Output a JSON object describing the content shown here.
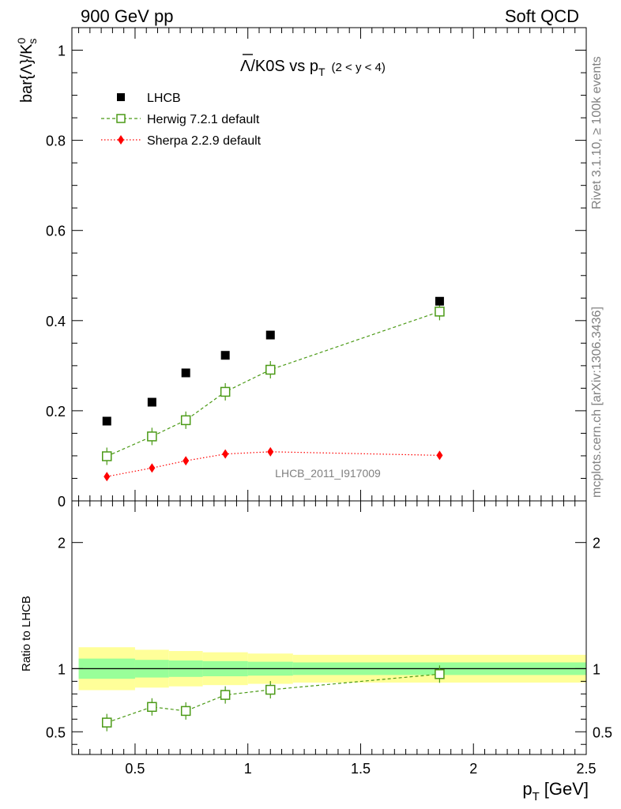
{
  "header": {
    "left": "900 GeV pp",
    "right": "Soft QCD"
  },
  "side_labels": {
    "rivet": "Rivet 3.1.10, ≥ 100k events",
    "source": "mcplots.cern.ch [arXiv:1306.3436]"
  },
  "watermark": "LHCB_2011_I917009",
  "title": {
    "main": "Λ/K0S vs p",
    "sub": "T",
    "range": "(2 < y < 4)"
  },
  "chart_data": [
    {
      "type": "scatter",
      "panel": "main",
      "ylabel_main": "bar{Λ}/K",
      "ylabel_sup": "0",
      "ylabel_sub": "s",
      "xlim": [
        0.22,
        2.5
      ],
      "ylim": [
        0,
        1.05
      ],
      "yticks": [
        0,
        0.2,
        0.4,
        0.6,
        0.8,
        1
      ],
      "ytick_labels": [
        "0",
        "0.2",
        "0.4",
        "0.6",
        "0.8",
        "1"
      ],
      "legend_position": "top-left",
      "x": [
        0.375,
        0.575,
        0.725,
        0.9,
        1.1,
        1.85
      ],
      "series": [
        {
          "name": "LHCB",
          "marker": "square-filled",
          "color": "#000000",
          "values": [
            0.177,
            0.219,
            0.284,
            0.323,
            0.368,
            0.443
          ]
        },
        {
          "name": "Herwig 7.2.1 default",
          "marker": "square-open",
          "line": "dashed",
          "color": "#4b9a16",
          "values": [
            0.099,
            0.143,
            0.179,
            0.242,
            0.291,
            0.42
          ]
        },
        {
          "name": "Sherpa 2.2.9 default",
          "marker": "diamond",
          "line": "dotted",
          "color": "#ff0000",
          "values": [
            0.054,
            0.073,
            0.089,
            0.104,
            0.109,
            0.101
          ]
        }
      ]
    },
    {
      "type": "scatter",
      "panel": "ratio",
      "ylabel": "Ratio to LHCB",
      "xlabel_main": "p",
      "xlabel_sub": "T",
      "xlabel_unit": "[GeV]",
      "xlim": [
        0.22,
        2.5
      ],
      "ylim": [
        0.32,
        2.33
      ],
      "xticks": [
        0.5,
        1,
        1.5,
        2,
        2.5
      ],
      "xtick_labels": [
        "0.5",
        "1",
        "1.5",
        "2",
        "2.5"
      ],
      "yticks": [
        0.5,
        1,
        2
      ],
      "ytick_labels": [
        "0.5",
        "1",
        "2"
      ],
      "bands": [
        {
          "x0": 0.25,
          "x1": 0.5,
          "inner": [
            0.92,
            1.08
          ],
          "outer": [
            0.83,
            1.17
          ]
        },
        {
          "x0": 0.5,
          "x1": 0.65,
          "inner": [
            0.93,
            1.07
          ],
          "outer": [
            0.85,
            1.15
          ]
        },
        {
          "x0": 0.65,
          "x1": 0.8,
          "inner": [
            0.935,
            1.065
          ],
          "outer": [
            0.86,
            1.14
          ]
        },
        {
          "x0": 0.8,
          "x1": 1.0,
          "inner": [
            0.94,
            1.06
          ],
          "outer": [
            0.87,
            1.13
          ]
        },
        {
          "x0": 1.0,
          "x1": 1.2,
          "inner": [
            0.945,
            1.055
          ],
          "outer": [
            0.88,
            1.12
          ]
        },
        {
          "x0": 1.2,
          "x1": 2.5,
          "inner": [
            0.95,
            1.05
          ],
          "outer": [
            0.89,
            1.11
          ]
        }
      ],
      "x": [
        0.375,
        0.575,
        0.725,
        0.9,
        1.1,
        1.85
      ],
      "series": [
        {
          "name": "Herwig 7.2.1 default",
          "marker": "square-open",
          "line": "dashed",
          "color": "#4b9a16",
          "values": [
            0.573,
            0.697,
            0.665,
            0.792,
            0.833,
            0.957
          ]
        }
      ]
    }
  ]
}
